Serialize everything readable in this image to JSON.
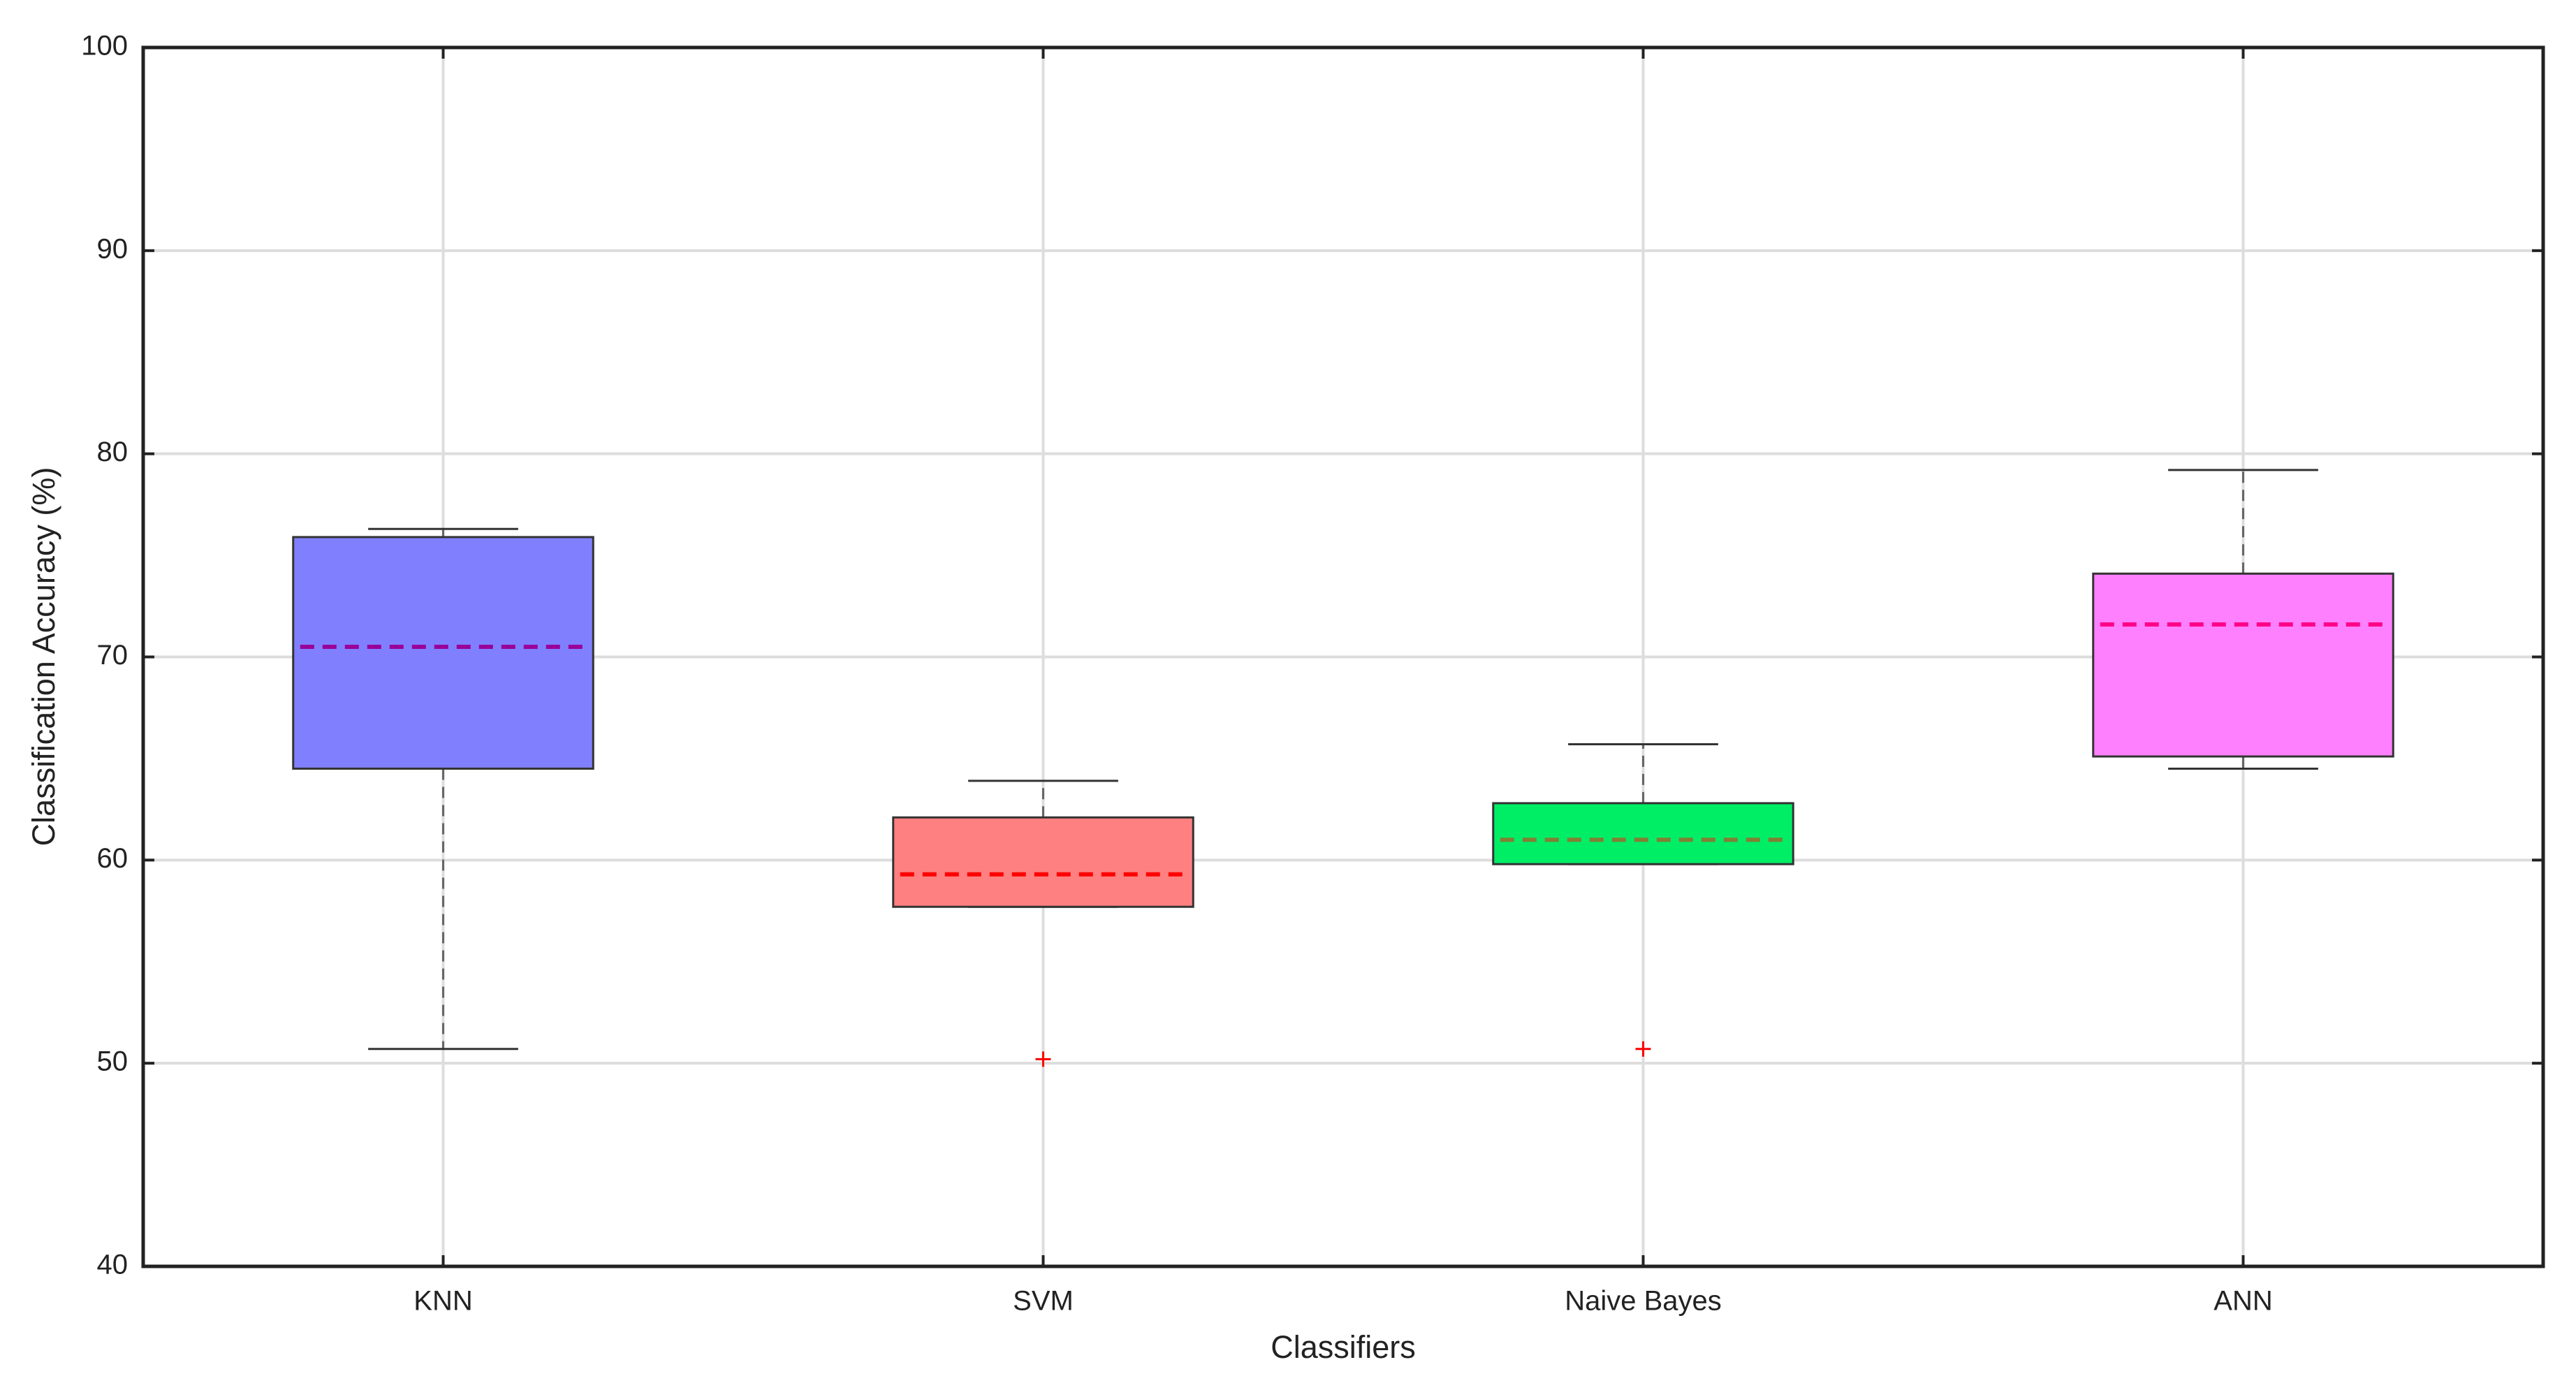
{
  "chart_data": {
    "type": "box",
    "xlabel": "Classifiers",
    "ylabel": "Classification Accuracy (%)",
    "categories": [
      "KNN",
      "SVM",
      "Naive Bayes",
      "ANN"
    ],
    "series": [
      {
        "name": "KNN",
        "color": "#8080ff",
        "median_color": "#990099",
        "min": 50.7,
        "q1": 64.5,
        "median": 70.5,
        "q3": 75.9,
        "max": 76.3,
        "outliers": []
      },
      {
        "name": "SVM",
        "color": "#ff8080",
        "median_color": "#ff0000",
        "min": 57.7,
        "q1": 57.7,
        "median": 59.3,
        "q3": 62.1,
        "max": 63.9,
        "outliers": [
          50.2
        ]
      },
      {
        "name": "Naive Bayes",
        "color": "#00ee66",
        "median_color": "#808033",
        "min": 59.8,
        "q1": 59.8,
        "median": 61.0,
        "q3": 62.8,
        "max": 65.7,
        "outliers": [
          50.7
        ]
      },
      {
        "name": "ANN",
        "color": "#ff80ff",
        "median_color": "#ff0088",
        "min": 64.5,
        "q1": 65.1,
        "median": 71.6,
        "q3": 74.1,
        "max": 79.2,
        "outliers": []
      }
    ],
    "ylim": [
      40,
      100
    ],
    "yticks": [
      40,
      50,
      60,
      70,
      80,
      90,
      100
    ],
    "grid": true
  }
}
